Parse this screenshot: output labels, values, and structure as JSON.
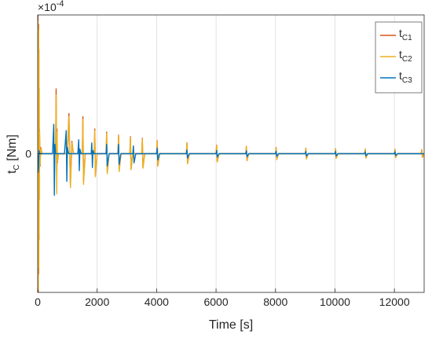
{
  "chart_data": {
    "type": "line",
    "xlabel": "Time [s]",
    "ylabel": "t",
    "ylabel_sub": "C",
    "ylabel_unit": " [Nm]",
    "exponent": {
      "base": "×10",
      "power": "-4"
    },
    "xlim": [
      0,
      13000
    ],
    "ylim": [
      -4.5,
      4.5
    ],
    "y_scale_note": "values in units of 1e-4 Nm",
    "xticks": [
      0,
      2000,
      4000,
      6000,
      8000,
      10000,
      12000
    ],
    "xtick_labels": [
      "0",
      "2000",
      "4000",
      "6000",
      "8000",
      "10000",
      "12000"
    ],
    "yticks": [
      0
    ],
    "ytick_labels": [
      "0"
    ],
    "grid": "x-only",
    "legend_position": "top-right",
    "series": [
      {
        "name": "t",
        "sub": "C1",
        "color": "#d95319",
        "x": [
          0,
          10,
          20,
          30,
          35,
          40,
          45,
          50,
          55,
          60,
          80,
          100,
          150,
          200,
          300,
          400,
          600,
          620,
          640,
          650,
          660,
          700,
          800,
          1000,
          1050,
          1100,
          1150,
          1200,
          1400,
          1500,
          1520,
          1540,
          1600,
          1800,
          1900,
          1920,
          1940,
          2000,
          2200,
          2300,
          2320,
          2340,
          2400,
          2600,
          2700,
          2720,
          2740,
          2800,
          3000,
          3100,
          3120,
          3140,
          3200,
          3500,
          3520,
          3540,
          3600,
          4000,
          4020,
          4040,
          4100,
          5000,
          5020,
          5040,
          5100,
          6000,
          6020,
          6040,
          6100,
          7000,
          7020,
          7040,
          7100,
          8000,
          8020,
          8040,
          8100,
          9000,
          9020,
          9040,
          9100,
          10000,
          10020,
          10040,
          10100,
          11000,
          11020,
          11040,
          11100,
          12000,
          12020,
          12040,
          12100,
          12900,
          12920,
          12940,
          13000
        ],
        "y": [
          0,
          4.5,
          -4.5,
          4.2,
          -3.9,
          3.4,
          -2.8,
          2.1,
          -1.5,
          0.8,
          -0.4,
          0.2,
          0,
          0,
          0,
          0,
          0,
          2.1,
          -1.2,
          0.8,
          -0.3,
          0,
          0,
          0,
          1.3,
          -1.0,
          0.4,
          0,
          0,
          0,
          1.2,
          -0.9,
          0,
          0,
          0,
          0.8,
          -0.7,
          0,
          0,
          0,
          0.7,
          -0.6,
          0,
          0,
          0,
          0.6,
          -0.55,
          0,
          0,
          0,
          0.55,
          -0.5,
          0,
          0,
          0.5,
          -0.45,
          0,
          0,
          0.42,
          -0.4,
          0,
          0,
          0.35,
          -0.32,
          0,
          0,
          0.28,
          -0.26,
          0,
          0,
          0.24,
          -0.22,
          0,
          0,
          0.2,
          -0.19,
          0,
          0,
          0.18,
          -0.17,
          0,
          0,
          0.16,
          -0.15,
          0,
          0,
          0.15,
          -0.14,
          0,
          0,
          0.14,
          -0.13,
          0,
          0,
          0.13,
          -0.12,
          0
        ]
      },
      {
        "name": "t",
        "sub": "C2",
        "color": "#edb120",
        "x": [
          0,
          12,
          22,
          32,
          37,
          42,
          47,
          52,
          57,
          62,
          82,
          102,
          150,
          200,
          300,
          400,
          600,
          622,
          642,
          652,
          662,
          700,
          800,
          1000,
          1052,
          1102,
          1152,
          1200,
          1400,
          1500,
          1522,
          1542,
          1600,
          1800,
          1900,
          1922,
          1942,
          2000,
          2200,
          2300,
          2322,
          2342,
          2400,
          2600,
          2700,
          2722,
          2742,
          2800,
          3000,
          3100,
          3122,
          3142,
          3200,
          3500,
          3522,
          3542,
          3600,
          4000,
          4022,
          4042,
          4100,
          5000,
          5022,
          5042,
          5100,
          6000,
          6022,
          6042,
          6100,
          7000,
          7022,
          7042,
          7100,
          8000,
          8022,
          8042,
          8100,
          9000,
          9022,
          9042,
          9100,
          10000,
          10022,
          10042,
          10100,
          11000,
          11022,
          11042,
          11100,
          12000,
          12022,
          12042,
          12100,
          12900,
          12922,
          12942,
          13000
        ],
        "y": [
          0,
          4.3,
          -4.4,
          4.0,
          -3.7,
          3.2,
          -2.6,
          2.0,
          -1.4,
          0.7,
          -0.35,
          0.15,
          0,
          0,
          0,
          0,
          0,
          1.9,
          -1.3,
          0.7,
          -0.25,
          0,
          0,
          0,
          1.2,
          -1.1,
          0.35,
          0,
          0,
          0,
          1.1,
          -1.0,
          0,
          0,
          0,
          0.75,
          -0.75,
          0,
          0,
          0,
          0.65,
          -0.65,
          0,
          0,
          0,
          0.58,
          -0.58,
          0,
          0,
          0,
          0.52,
          -0.52,
          0,
          0,
          0.47,
          -0.47,
          0,
          0,
          0.4,
          -0.4,
          0,
          0,
          0.33,
          -0.33,
          0,
          0,
          0.27,
          -0.27,
          0,
          0,
          0.23,
          -0.23,
          0,
          0,
          0.19,
          -0.19,
          0,
          0,
          0.17,
          -0.17,
          0,
          0,
          0.15,
          -0.15,
          0,
          0,
          0.14,
          -0.14,
          0,
          0,
          0.13,
          -0.13,
          0,
          0,
          0.12,
          -0.12,
          0
        ]
      },
      {
        "name": "t",
        "sub": "C3",
        "color": "#0072bd",
        "x": [
          0,
          15,
          30,
          45,
          60,
          80,
          100,
          150,
          300,
          500,
          540,
          560,
          580,
          600,
          640,
          900,
          960,
          980,
          1000,
          1040,
          1350,
          1380,
          1400,
          1420,
          1460,
          1800,
          1820,
          1840,
          1860,
          1900,
          2200,
          2300,
          2320,
          2340,
          2400,
          2600,
          2700,
          2720,
          2740,
          2800,
          3200,
          3220,
          3240,
          3300,
          4000,
          4020,
          4040,
          4100,
          5000,
          5020,
          5040,
          5100,
          6000,
          6020,
          6040,
          6100,
          7000,
          7020,
          7040,
          7100,
          8000,
          8020,
          8040,
          8100,
          9000,
          9020,
          9040,
          9100,
          10000,
          10020,
          10040,
          10100,
          11000,
          11020,
          11040,
          11100,
          12000,
          12020,
          12040,
          12100,
          13000
        ],
        "y": [
          0,
          -0.6,
          -0.4,
          0.1,
          0,
          0,
          0,
          0,
          0,
          0,
          0.95,
          -1.35,
          0.3,
          0,
          0,
          0,
          0.75,
          -0.9,
          0.2,
          0,
          0,
          0.45,
          -0.55,
          0.15,
          0,
          0,
          0.35,
          -0.45,
          0.1,
          0,
          0,
          0,
          0.3,
          -0.4,
          0,
          0,
          0,
          0.3,
          -0.35,
          0,
          0,
          0.25,
          -0.3,
          0,
          0,
          0.18,
          -0.2,
          0,
          0,
          0.12,
          -0.14,
          0,
          0,
          0.1,
          -0.11,
          0,
          0,
          0.09,
          -0.1,
          0,
          0,
          0.08,
          -0.09,
          0,
          0,
          0.07,
          -0.08,
          0,
          0,
          0.07,
          -0.07,
          0,
          0,
          0.06,
          -0.07,
          0,
          0,
          0.06,
          -0.06,
          0,
          0
        ]
      }
    ]
  }
}
